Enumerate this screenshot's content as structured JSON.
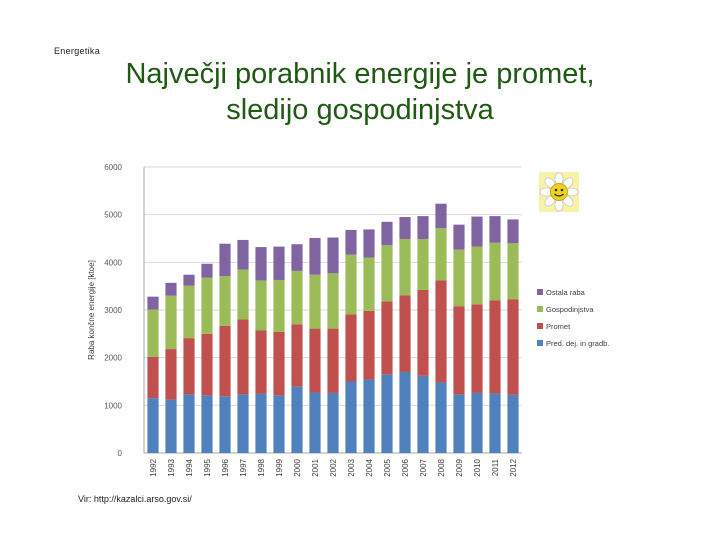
{
  "header": {
    "section_label": "Energetika",
    "title_line1": "Največji porabnik  energije je promet,",
    "title_line2": "sledijo gospodinjstva"
  },
  "footer": {
    "source": "Vir: http://kazalci.arso.gov.si/"
  },
  "decoration": {
    "icon": "smiling-flower-icon"
  },
  "colors": {
    "title": "#1f5a14",
    "series": [
      "#4f81bd",
      "#c0504d",
      "#9bbb59",
      "#8064a2"
    ]
  },
  "chart_data": {
    "type": "bar",
    "stacked": true,
    "ylabel": "Raba končne energije [ktoe]",
    "xlabel": "",
    "ylim": [
      0,
      6000
    ],
    "yticks": [
      0,
      1000,
      2000,
      3000,
      4000,
      5000,
      6000
    ],
    "grid": true,
    "legend_position": "right",
    "categories": [
      "1992",
      "1993",
      "1994",
      "1995",
      "1996",
      "1997",
      "1998",
      "1999",
      "2000",
      "2001",
      "2002",
      "2003",
      "2004",
      "2005",
      "2006",
      "2007",
      "2008",
      "2009",
      "2010",
      "2011",
      "2012"
    ],
    "series": [
      {
        "name": "Pred. dej. in gradb.",
        "color": "#4f81bd",
        "values": [
          1150,
          1120,
          1230,
          1210,
          1190,
          1230,
          1240,
          1210,
          1390,
          1270,
          1260,
          1500,
          1540,
          1650,
          1700,
          1620,
          1480,
          1230,
          1260,
          1250,
          1220
        ]
      },
      {
        "name": "Promet",
        "color": "#c0504d",
        "values": [
          870,
          1060,
          1180,
          1290,
          1480,
          1570,
          1330,
          1330,
          1310,
          1340,
          1350,
          1410,
          1440,
          1530,
          1610,
          1800,
          2140,
          1850,
          1860,
          1950,
          2000
        ]
      },
      {
        "name": "Gospodinjstva",
        "color": "#9bbb59",
        "values": [
          990,
          1120,
          1100,
          1180,
          1040,
          1050,
          1050,
          1090,
          1120,
          1130,
          1160,
          1250,
          1120,
          1180,
          1180,
          1070,
          1100,
          1190,
          1210,
          1210,
          1180
        ]
      },
      {
        "name": "Ostala raba",
        "color": "#8064a2",
        "values": [
          270,
          270,
          230,
          290,
          680,
          620,
          700,
          700,
          560,
          770,
          750,
          520,
          590,
          490,
          460,
          480,
          510,
          520,
          630,
          560,
          500
        ]
      }
    ]
  }
}
